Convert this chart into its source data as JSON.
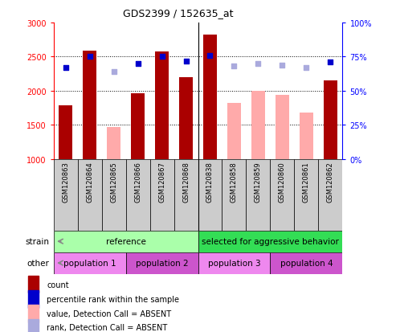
{
  "title": "GDS2399 / 152635_at",
  "samples": [
    "GSM120863",
    "GSM120864",
    "GSM120865",
    "GSM120866",
    "GSM120867",
    "GSM120868",
    "GSM120838",
    "GSM120858",
    "GSM120859",
    "GSM120860",
    "GSM120861",
    "GSM120862"
  ],
  "count_values": [
    1790,
    2590,
    null,
    1960,
    2570,
    2200,
    2820,
    null,
    null,
    null,
    null,
    2150
  ],
  "absent_values": [
    null,
    null,
    1470,
    null,
    null,
    null,
    null,
    1820,
    2000,
    1940,
    1680,
    null
  ],
  "percentile_present": [
    67,
    75,
    null,
    70,
    75,
    72,
    76,
    null,
    null,
    null,
    null,
    71
  ],
  "percentile_absent": [
    null,
    null,
    64,
    null,
    null,
    null,
    null,
    68,
    70,
    69,
    67,
    null
  ],
  "ylim_left": [
    1000,
    3000
  ],
  "ylim_right": [
    0,
    100
  ],
  "yticks_left": [
    1000,
    1500,
    2000,
    2500,
    3000
  ],
  "yticks_right": [
    0,
    25,
    50,
    75,
    100
  ],
  "bar_width": 0.55,
  "dark_red": "#AA0000",
  "light_pink": "#FFAAAA",
  "dark_blue": "#0000CC",
  "light_blue": "#AAAADD",
  "bg_color": "#FFFFFF",
  "plot_bg": "#FFFFFF",
  "xticklabel_bg": "#CCCCCC",
  "strain_ref_color": "#AAFFAA",
  "strain_sel_color": "#00CC44",
  "pop_color1": "#EE88EE",
  "pop_color2": "#CC55CC",
  "strain_groups": [
    {
      "label": "reference",
      "start": 0,
      "end": 6,
      "color": "#AAFFAA"
    },
    {
      "label": "selected for aggressive behavior",
      "start": 6,
      "end": 12,
      "color": "#33DD55"
    }
  ],
  "population_groups": [
    {
      "label": "population 1",
      "start": 0,
      "end": 3,
      "color": "#EE88EE"
    },
    {
      "label": "population 2",
      "start": 3,
      "end": 6,
      "color": "#CC55CC"
    },
    {
      "label": "population 3",
      "start": 6,
      "end": 9,
      "color": "#EE88EE"
    },
    {
      "label": "population 4",
      "start": 9,
      "end": 12,
      "color": "#CC55CC"
    }
  ],
  "legend_labels": [
    "count",
    "percentile rank within the sample",
    "value, Detection Call = ABSENT",
    "rank, Detection Call = ABSENT"
  ],
  "legend_colors": [
    "#AA0000",
    "#0000CC",
    "#FFAAAA",
    "#AAAADD"
  ],
  "strain_label": "strain",
  "other_label": "other"
}
